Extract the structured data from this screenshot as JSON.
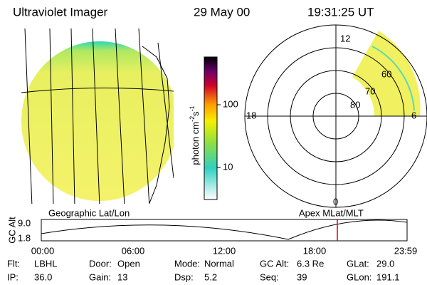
{
  "header": {
    "instrument": "Ultraviolet Imager",
    "date": "29 May 00",
    "time": "19:31:25 UT"
  },
  "colorbar": {
    "label_parts": [
      "photon cm",
      "-2",
      "s",
      "-1"
    ],
    "ticks": [
      "100",
      "10"
    ]
  },
  "polar": {
    "mlt_labels": [
      "12",
      "18",
      "6",
      "0"
    ],
    "mlat_labels": [
      "80",
      "70",
      "60"
    ]
  },
  "panel_titles": [
    "Geographic Lat/Lon",
    "Apex MLat/MLT"
  ],
  "altitude": {
    "axis_label": "GC Alt",
    "y_labels": [
      "9.0",
      "1.8"
    ],
    "x_labels": [
      "00:00",
      "06:00",
      "12:00",
      "18:00",
      "23:59"
    ]
  },
  "footer": {
    "rows": [
      [
        [
          "Flt:",
          "LBHL"
        ],
        [
          "Door:",
          "Open"
        ],
        [
          "Mode:",
          "Normal"
        ],
        [
          "GC Alt:",
          "6.3 Re"
        ],
        [
          "GLat:",
          "29.0"
        ]
      ],
      [
        [
          "IP:",
          "36.0"
        ],
        [
          "Gain:",
          "13"
        ],
        [
          "Dsp:",
          "5.2"
        ],
        [
          "Seq:",
          "39"
        ],
        [
          "GLon:",
          "191.1"
        ]
      ]
    ]
  }
}
